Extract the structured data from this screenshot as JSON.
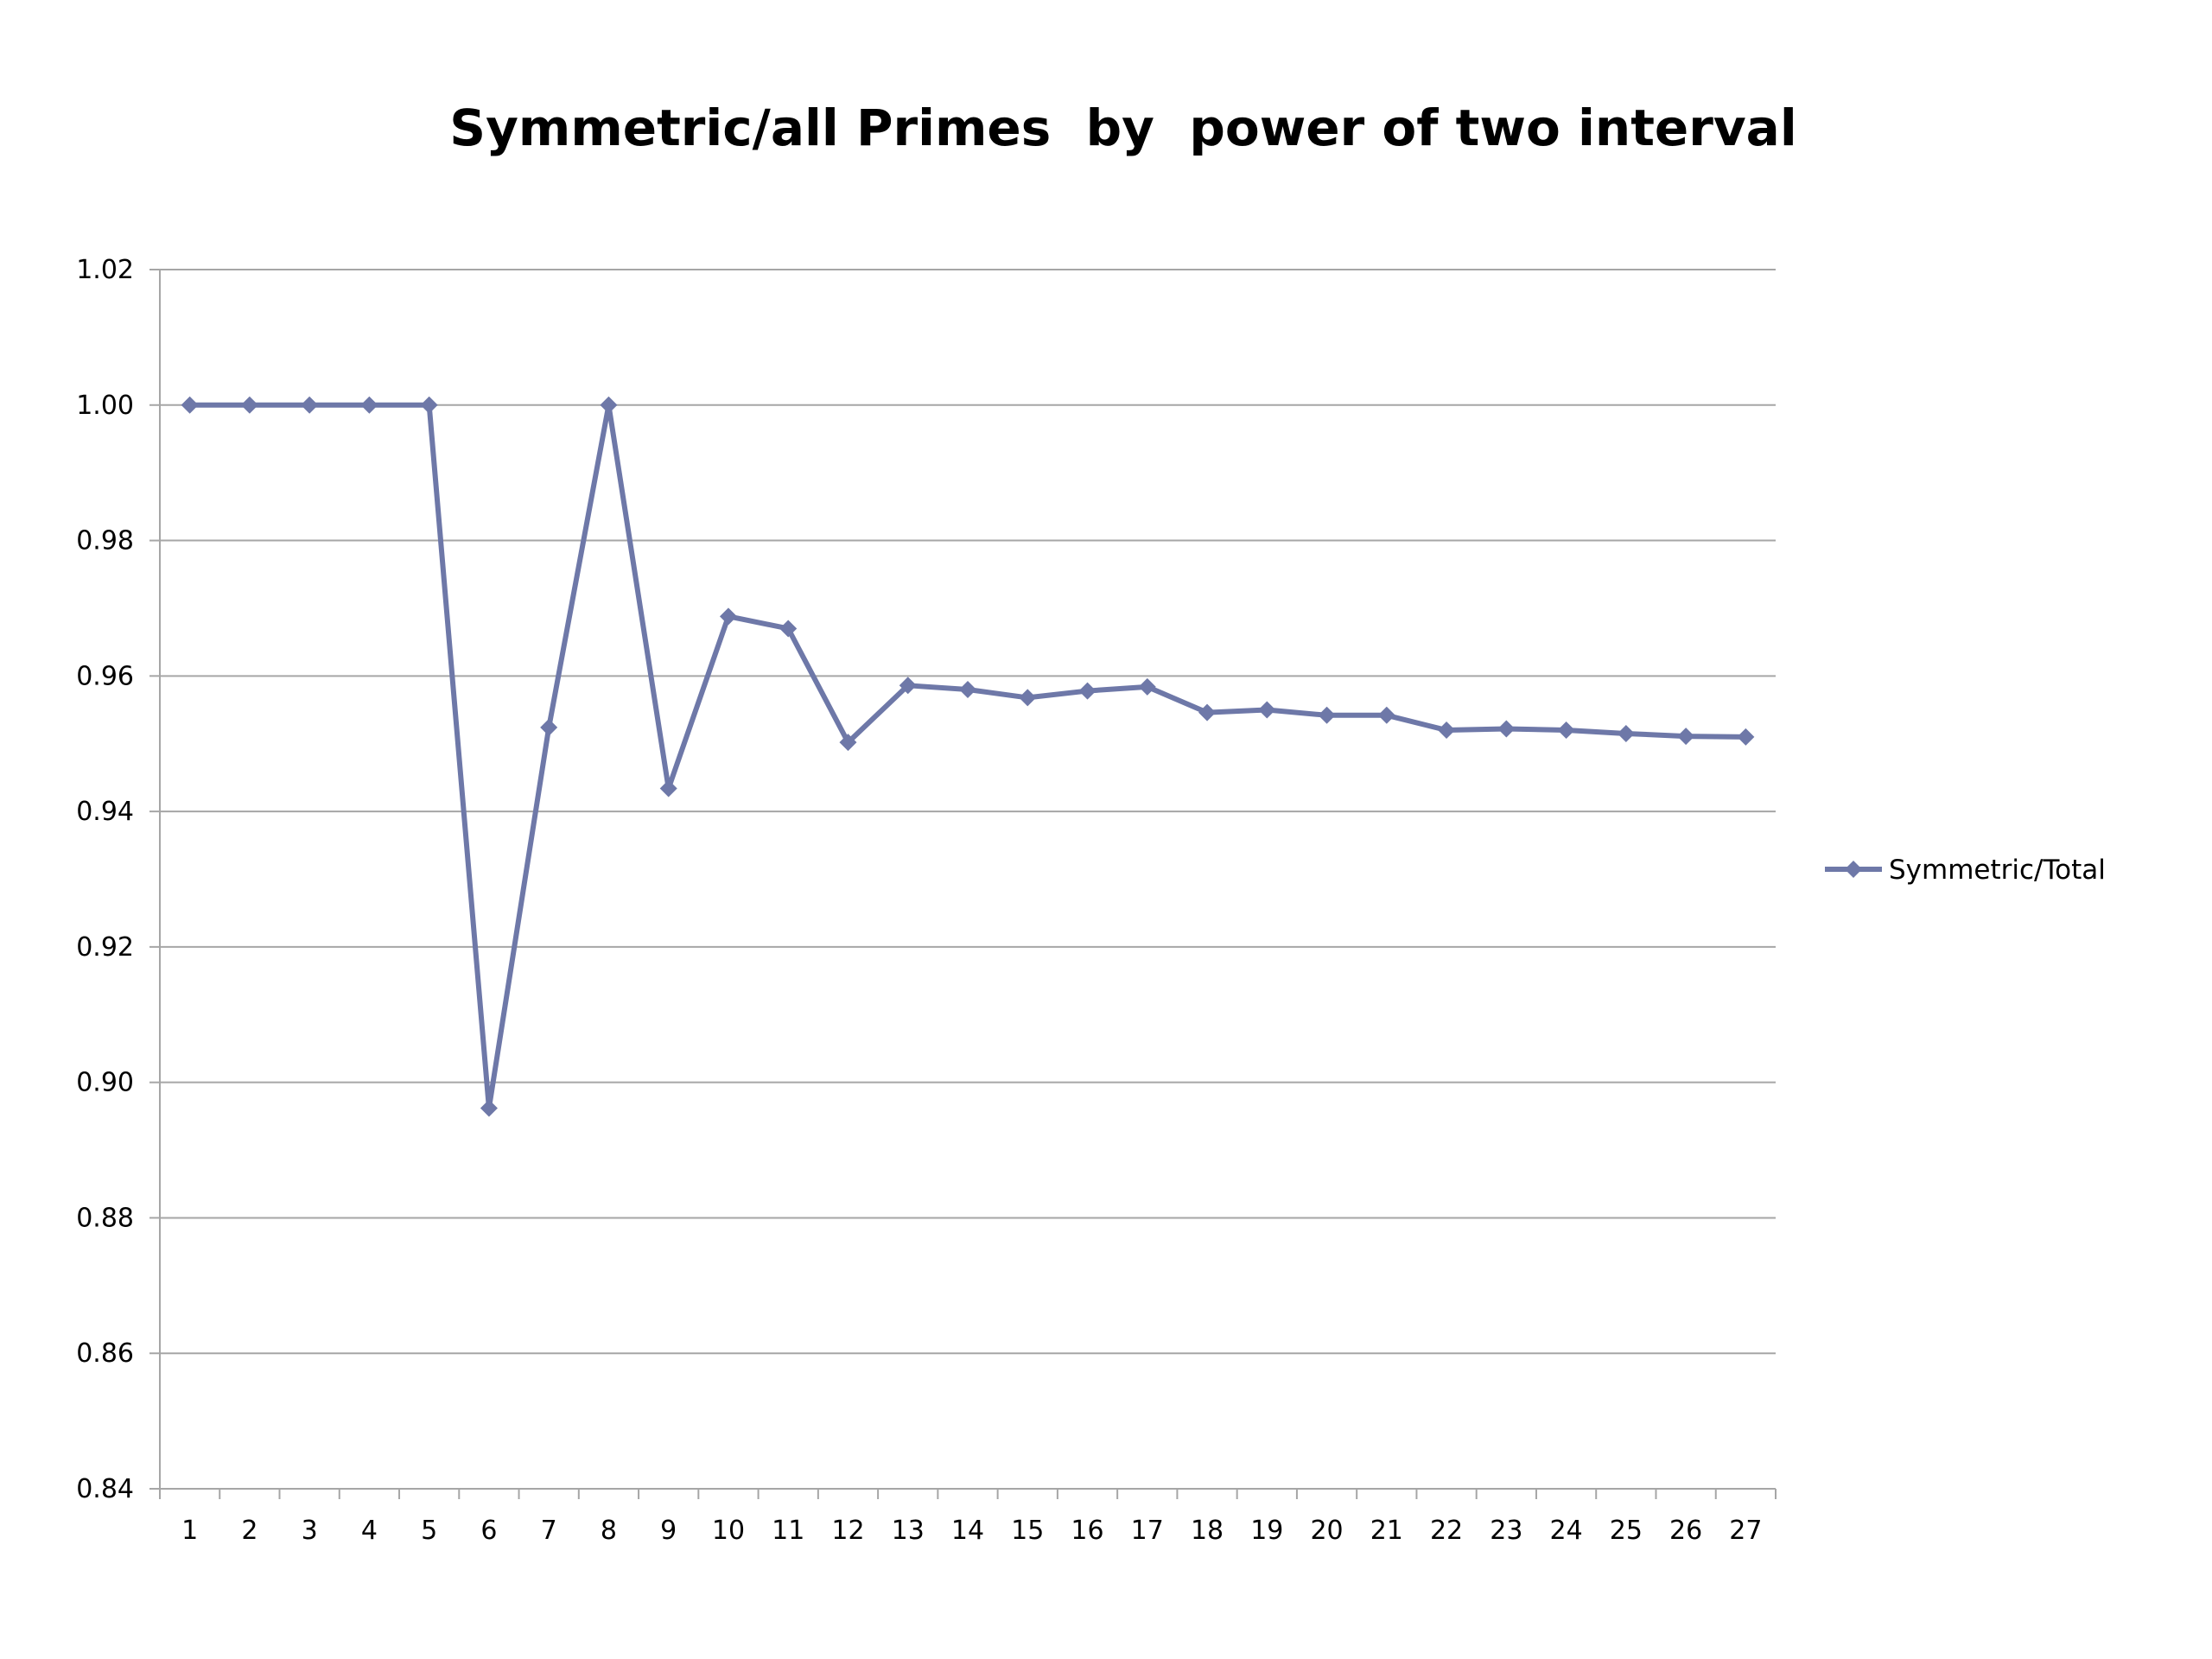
{
  "chart_data": {
    "type": "line",
    "title": "Symmetric/all Primes  by  power of two interval",
    "xlabel": "",
    "ylabel": "",
    "categories": [
      "1",
      "2",
      "3",
      "4",
      "5",
      "6",
      "7",
      "8",
      "9",
      "10",
      "11",
      "12",
      "13",
      "14",
      "15",
      "16",
      "17",
      "18",
      "19",
      "20",
      "21",
      "22",
      "23",
      "24",
      "25",
      "26",
      "27"
    ],
    "series": [
      {
        "name": "Symmetric/Total",
        "values": [
          1.0,
          1.0,
          1.0,
          1.0,
          1.0,
          0.8962,
          0.9524,
          1.0,
          0.9434,
          0.9688,
          0.967,
          0.9502,
          0.9586,
          0.958,
          0.9568,
          0.9578,
          0.9584,
          0.9546,
          0.955,
          0.9542,
          0.9542,
          0.952,
          0.9522,
          0.952,
          0.9515,
          0.9511,
          0.951
        ]
      }
    ],
    "ylim": [
      0.84,
      1.02
    ],
    "yticks": [
      "0.84",
      "0.86",
      "0.88",
      "0.90",
      "0.92",
      "0.94",
      "0.96",
      "0.98",
      "1.00",
      "1.02"
    ],
    "grid": true,
    "legend_position": "right",
    "series_color": "#6e78a8",
    "grid_color": "#a6a6a6",
    "axis_color": "#a6a6a6"
  }
}
